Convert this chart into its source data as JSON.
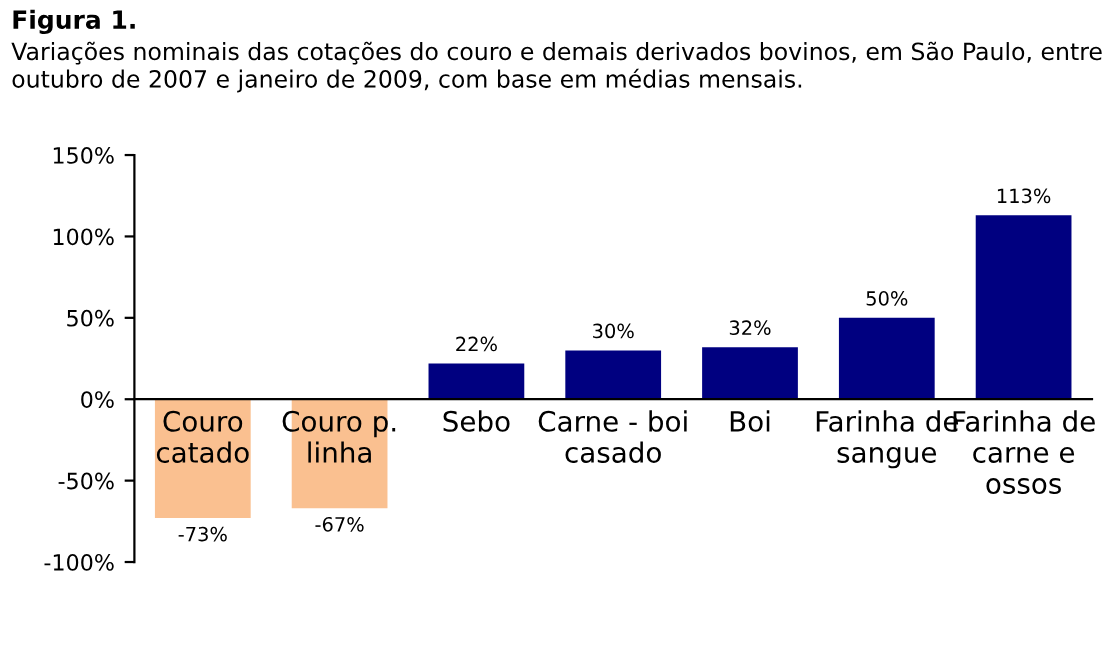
{
  "chart_data": {
    "type": "bar",
    "title": "Figura 1.",
    "subtitle": "Variações nominais das cotações do couro e demais derivados bovinos, em São Paulo, entre outubro de 2007 e janeiro de 2009, com base em médias mensais.",
    "categories": [
      "Couro\ncatado",
      "Couro p.\nlinha",
      "Sebo",
      "Carne - boi\ncasado",
      "Boi",
      "Farinha de\nsangue",
      "Farinha de\ncarne e\nossos"
    ],
    "values": [
      -73,
      -67,
      22,
      30,
      32,
      50,
      113
    ],
    "colors": [
      "#fac090",
      "#fac090",
      "#000080",
      "#000080",
      "#000080",
      "#000080",
      "#000080"
    ],
    "value_labels": [
      "-73%",
      "-67%",
      "22%",
      "30%",
      "32%",
      "50%",
      "113%"
    ],
    "ylim": [
      -100,
      150
    ],
    "yticks": [
      {
        "value": -100,
        "label": "-100%"
      },
      {
        "value": -50,
        "label": "-50%"
      },
      {
        "value": 0,
        "label": "0%"
      },
      {
        "value": 50,
        "label": "50%"
      },
      {
        "value": 100,
        "label": "100%"
      },
      {
        "value": 150,
        "label": "150%"
      }
    ],
    "grid": false,
    "legend": false
  }
}
